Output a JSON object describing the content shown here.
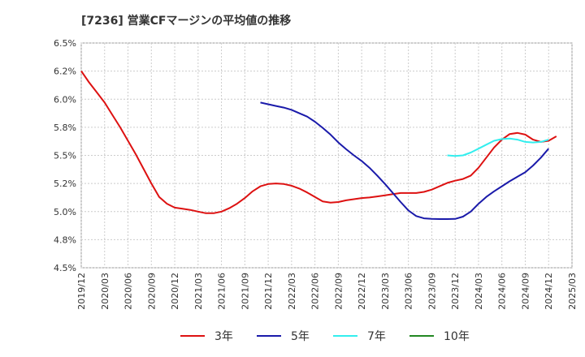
{
  "chart_data": {
    "type": "line",
    "title": "[7236]  営業CFマージンの平均値の推移",
    "y_ticks": [
      "6.5%",
      "6.2%",
      "6.0%",
      "5.8%",
      "5.5%",
      "5.2%",
      "5.0%",
      "4.8%",
      "4.5%"
    ],
    "y_tick_values": [
      6.5,
      6.25,
      6.0,
      5.75,
      5.5,
      5.25,
      5.0,
      4.75,
      4.5
    ],
    "ylim": [
      4.5,
      6.5
    ],
    "x_ticks": [
      "2019/12",
      "2020/03",
      "2020/06",
      "2020/09",
      "2020/12",
      "2021/03",
      "2021/06",
      "2021/09",
      "2021/12",
      "2022/03",
      "2022/06",
      "2022/09",
      "2022/12",
      "2023/03",
      "2023/06",
      "2023/09",
      "2023/12",
      "2024/03",
      "2024/06",
      "2024/09",
      "2024/12",
      "2025/03"
    ],
    "xlim": [
      "2019/12",
      "2025/03"
    ],
    "grid": true,
    "legend_position": "bottom",
    "series": [
      {
        "name": "3年",
        "color": "#dd1111",
        "start": "2019/12",
        "values": [
          6.25,
          6.15,
          6.06,
          5.97,
          5.86,
          5.75,
          5.63,
          5.51,
          5.38,
          5.25,
          5.13,
          5.07,
          5.035,
          5.025,
          5.015,
          5.0,
          4.985,
          4.985,
          5.0,
          5.03,
          5.07,
          5.12,
          5.18,
          5.225,
          5.245,
          5.25,
          5.245,
          5.23,
          5.205,
          5.17,
          5.13,
          5.09,
          5.08,
          5.085,
          5.1,
          5.11,
          5.12,
          5.125,
          5.135,
          5.145,
          5.155,
          5.165,
          5.165,
          5.165,
          5.175,
          5.195,
          5.225,
          5.255,
          5.275,
          5.29,
          5.32,
          5.39,
          5.48,
          5.57,
          5.64,
          5.69,
          5.7,
          5.685,
          5.64,
          5.62,
          5.63,
          5.67
        ]
      },
      {
        "name": "5年",
        "color": "#1a1aaa",
        "start": "2021/11",
        "values": [
          5.97,
          5.955,
          5.94,
          5.925,
          5.905,
          5.875,
          5.845,
          5.8,
          5.745,
          5.685,
          5.615,
          5.555,
          5.5,
          5.45,
          5.39,
          5.32,
          5.245,
          5.165,
          5.085,
          5.01,
          4.96,
          4.94,
          4.935,
          4.933,
          4.933,
          4.935,
          4.955,
          5.0,
          5.07,
          5.13,
          5.18,
          5.225,
          5.27,
          5.31,
          5.35,
          5.41,
          5.48,
          5.56
        ]
      },
      {
        "name": "7年",
        "color": "#33eeee",
        "start": "2023/11",
        "values": [
          5.5,
          5.495,
          5.5,
          5.525,
          5.56,
          5.595,
          5.63,
          5.645,
          5.65,
          5.64,
          5.62,
          5.615,
          5.62,
          5.64
        ]
      },
      {
        "name": "10年",
        "color": "#228822",
        "start": "2019/12",
        "values": []
      }
    ]
  }
}
